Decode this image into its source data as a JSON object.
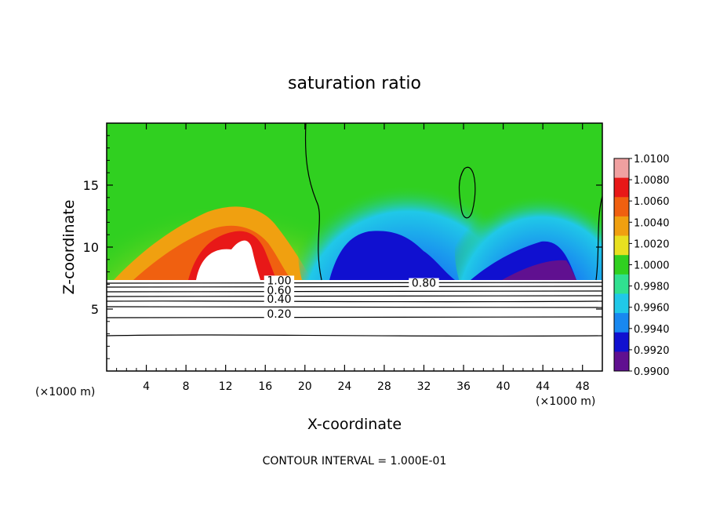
{
  "chart_data": {
    "type": "heatmap",
    "title": "saturation ratio",
    "xlabel": "X-coordinate",
    "ylabel": "Z-coordinate",
    "x_unit_left": "(×1000 m)",
    "x_unit_right": "(×1000 m)",
    "xlim": [
      0,
      50
    ],
    "ylim": [
      0,
      20
    ],
    "x_ticks": [
      "4",
      "8",
      "12",
      "16",
      "20",
      "24",
      "28",
      "32",
      "36",
      "40",
      "44",
      "48"
    ],
    "y_ticks": [
      "5",
      "10",
      "15"
    ],
    "colorbar": {
      "ticks": [
        "1.0100",
        "1.0080",
        "1.0060",
        "1.0040",
        "1.0020",
        "1.0000",
        "0.9980",
        "0.9960",
        "0.9940",
        "0.9920",
        "0.9900"
      ],
      "colors": [
        "#f0a0a0",
        "#e81818",
        "#f06010",
        "#f0a010",
        "#e8e020",
        "#30d020",
        "#30e090",
        "#20c8e8",
        "#1888f0",
        "#1010d0",
        "#601090"
      ]
    },
    "contour_labels": [
      {
        "text": "1.00",
        "x": 17.4,
        "z": 7.0
      },
      {
        "text": "0.60",
        "x": 17.4,
        "z": 6.2
      },
      {
        "text": "0.40",
        "x": 17.4,
        "z": 5.5
      },
      {
        "text": "0.20",
        "x": 17.4,
        "z": 4.3
      },
      {
        "text": "0.80",
        "x": 32.0,
        "z": 6.8
      }
    ],
    "contour_interval_text": "CONTOUR INTERVAL = 1.000E-01"
  }
}
